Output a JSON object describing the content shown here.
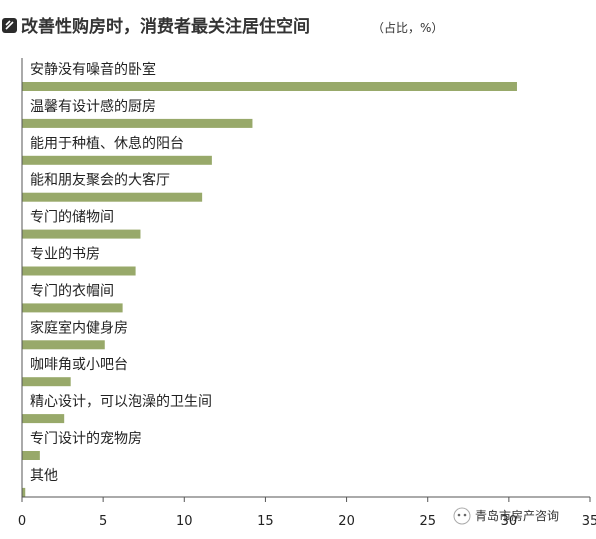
{
  "chart_data": {
    "type": "bar",
    "orientation": "horizontal",
    "title": "改善性购房时，消费者最关注居住空间",
    "unit_note": "（占比，%）",
    "categories": [
      "安静没有噪音的卧室",
      "温馨有设计感的厨房",
      "能用于种植、休息的阳台",
      "能和朋友聚会的大客厅",
      "专门的储物间",
      "专业的书房",
      "专门的衣帽间",
      "家庭室内健身房",
      "咖啡角或小吧台",
      "精心设计，可以泡澡的卫生间",
      "专门设计的宠物房",
      "其他"
    ],
    "values": [
      30.5,
      14.2,
      11.7,
      11.1,
      7.3,
      7.0,
      6.2,
      5.1,
      3.0,
      2.6,
      1.1,
      0.2
    ],
    "xlim": [
      0,
      35
    ],
    "xticks": [
      "0",
      "5",
      "10",
      "15",
      "20",
      "25",
      "30",
      "35"
    ],
    "grid": false,
    "bar_color": "#98a96a"
  },
  "watermark": {
    "text": "青岛市房产咨询"
  }
}
